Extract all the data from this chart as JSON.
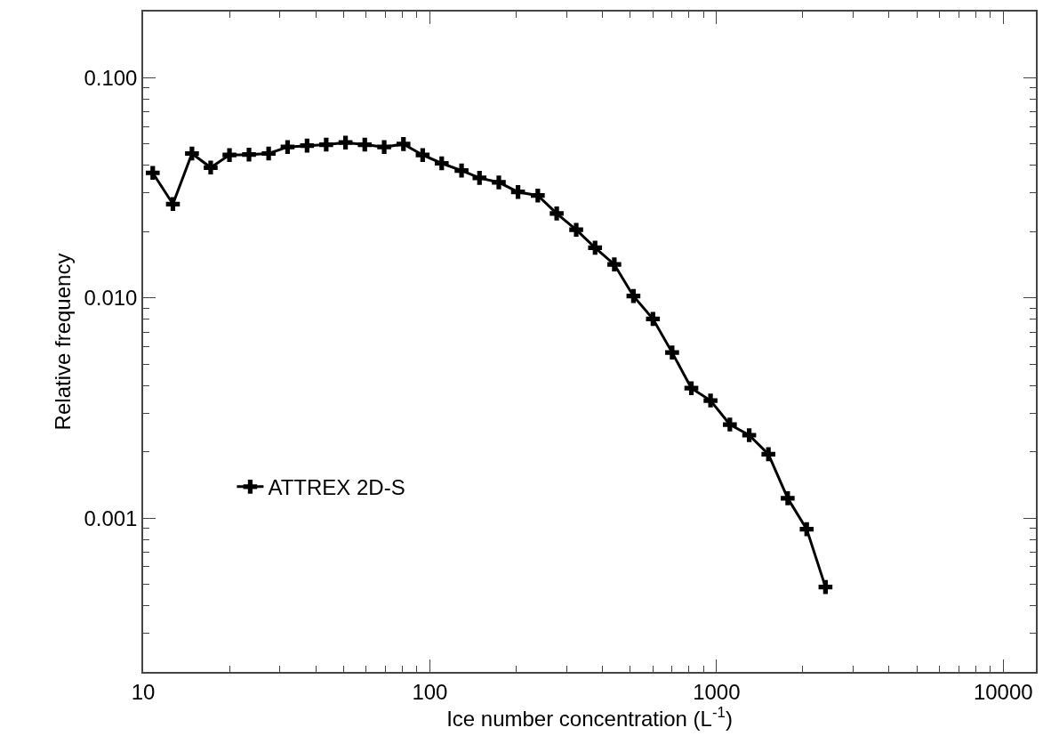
{
  "chart_data": {
    "type": "line",
    "xlabel": "Ice number concentration (L$^{-1}$)",
    "ylabel": "Relative frequency",
    "log": "xy",
    "xlim": [
      10,
      13000
    ],
    "ylim": [
      0.0002,
      0.2
    ],
    "xticks": [
      10,
      100,
      1000,
      10000
    ],
    "yticks": [
      {
        "value": 0.001,
        "label": "0.001"
      },
      {
        "value": 0.01,
        "label": "0.010"
      },
      {
        "value": 0.1,
        "label": "0.100"
      }
    ],
    "grid": false,
    "legend": "left",
    "marker": "cross",
    "line_style": "solid",
    "x": [
      10.8,
      12.7,
      14.8,
      17.2,
      20.0,
      23.4,
      27.4,
      31.9,
      37.3,
      43.5,
      50.8,
      59.3,
      69.3,
      80.9,
      94.4,
      110,
      129,
      149,
      174,
      203,
      238,
      277,
      324,
      377,
      440,
      513,
      600,
      700,
      817,
      953,
      1113,
      1300,
      1517,
      1771,
      2063,
      2399
    ],
    "series": [
      {
        "name": "ATTREX 2D-S",
        "color": "#000000",
        "values": [
          0.037,
          0.0267,
          0.0453,
          0.0391,
          0.0446,
          0.0448,
          0.0453,
          0.0485,
          0.0492,
          0.0497,
          0.0508,
          0.0497,
          0.0485,
          0.05,
          0.0446,
          0.0409,
          0.0379,
          0.0351,
          0.0335,
          0.0303,
          0.0292,
          0.0242,
          0.0204,
          0.0169,
          0.0142,
          0.0102,
          0.00803,
          0.00565,
          0.00389,
          0.00342,
          0.00266,
          0.00238,
          0.00195,
          0.00123,
          0.00089,
          0.000486
        ]
      }
    ]
  }
}
